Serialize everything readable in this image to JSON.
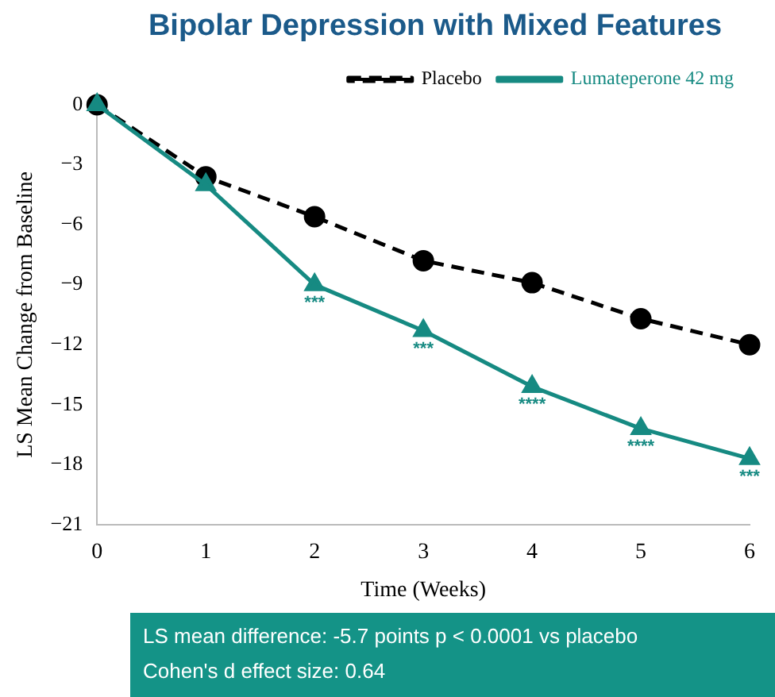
{
  "chart_data": {
    "type": "line",
    "title": "Bipolar Depression with Mixed Features",
    "xlabel": "Time (Weeks)",
    "ylabel": "LS Mean Change from Baseline",
    "x": [
      0,
      1,
      2,
      3,
      4,
      5,
      6
    ],
    "series": [
      {
        "name": "Placebo",
        "color": "#000000",
        "marker": "circle",
        "line_style": "dashed",
        "values": [
          0,
          -3.6,
          -5.6,
          -7.8,
          -8.9,
          -10.7,
          -12.0
        ]
      },
      {
        "name": "Lumateperone 42 mg",
        "color": "#168a82",
        "marker": "triangle",
        "line_style": "solid",
        "values": [
          0,
          -4.0,
          -9.0,
          -11.3,
          -14.1,
          -16.2,
          -17.7
        ]
      }
    ],
    "xlim": [
      0,
      6
    ],
    "xticks": [
      0,
      1,
      2,
      3,
      4,
      5,
      6
    ],
    "ylim": [
      -21,
      0
    ],
    "yticks": [
      -21,
      -18,
      -15,
      -12,
      -9,
      -6,
      -3,
      0
    ],
    "grid": false,
    "legend": "top right",
    "annotations": [
      {
        "text": "***",
        "x": 2,
        "y": -9.0
      },
      {
        "text": "***",
        "x": 3,
        "y": -11.3
      },
      {
        "text": "****",
        "x": 4,
        "y": -14.1
      },
      {
        "text": "****",
        "x": 5,
        "y": -16.2
      },
      {
        "text": "***",
        "x": 6,
        "y": -17.7
      },
      "LS mean difference: -5.7 points   p < 0.0001 vs placebo",
      "Cohen's d effect size: 0.64"
    ]
  }
}
